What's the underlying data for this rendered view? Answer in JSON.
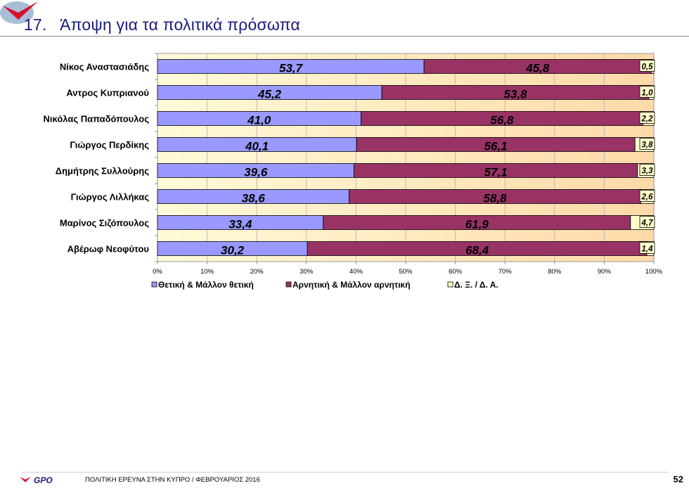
{
  "header": {
    "title_number": "17.",
    "title_text": "Άποψη για τα πολιτικά πρόσωπα"
  },
  "footer": {
    "brand": "GPO",
    "text": "ΠΟΛΙΤΙΚΗ ΕΡΕΥΝΑ ΣΤΗΝ ΚΥΠΡΟ  /  ΦΕΒΡΟΥΑΡΙΟΣ 2016",
    "page_number": "52"
  },
  "colors": {
    "positive": "#9999ff",
    "negative": "#993366",
    "dk": "#ffffcc",
    "plot_bg_left": "#fffbd9",
    "plot_bg_right": "#ffd9a8",
    "title": "#1a1a80"
  },
  "chart_data": {
    "type": "bar",
    "orientation": "horizontal",
    "stacked": "percent",
    "categories": [
      "Νίκος Αναστασιάδης",
      "Αντρος Κυπριανού",
      "Νικόλας Παπαδόπουλος",
      "Γιώργος Περδίκης",
      "Δημήτρης Συλλούρης",
      "Γιώργος Λιλλήκας",
      "Μαρίνος Σιζόπουλος",
      "Αβέρωφ Νεοφύτου"
    ],
    "series": [
      {
        "name": "Θετική & Μάλλον θετική",
        "values": [
          53.7,
          45.2,
          41.0,
          40.1,
          39.6,
          38.6,
          33.4,
          30.2
        ],
        "labels": [
          "53,7",
          "45,2",
          "41,0",
          "40,1",
          "39,6",
          "38,6",
          "33,4",
          "30,2"
        ]
      },
      {
        "name": "Αρνητική & Μάλλον αρνητική",
        "values": [
          45.8,
          53.8,
          56.8,
          56.1,
          57.1,
          58.8,
          61.9,
          68.4
        ],
        "labels": [
          "45,8",
          "53,8",
          "56,8",
          "56,1",
          "57,1",
          "58,8",
          "61,9",
          "68,4"
        ]
      },
      {
        "name": "Δ. Ξ. / Δ. Α.",
        "values": [
          0.5,
          1.0,
          2.2,
          3.8,
          3.3,
          2.6,
          4.7,
          1.4
        ],
        "labels": [
          "0,5",
          "1,0",
          "2,2",
          "3,8",
          "3,3",
          "2,6",
          "4,7",
          "1,4"
        ]
      }
    ],
    "x_ticks": [
      "0%",
      "10%",
      "20%",
      "30%",
      "40%",
      "50%",
      "60%",
      "70%",
      "80%",
      "90%",
      "100%"
    ],
    "xlim": [
      0,
      100
    ],
    "grid": "vertical",
    "legend": "bottom-left"
  }
}
